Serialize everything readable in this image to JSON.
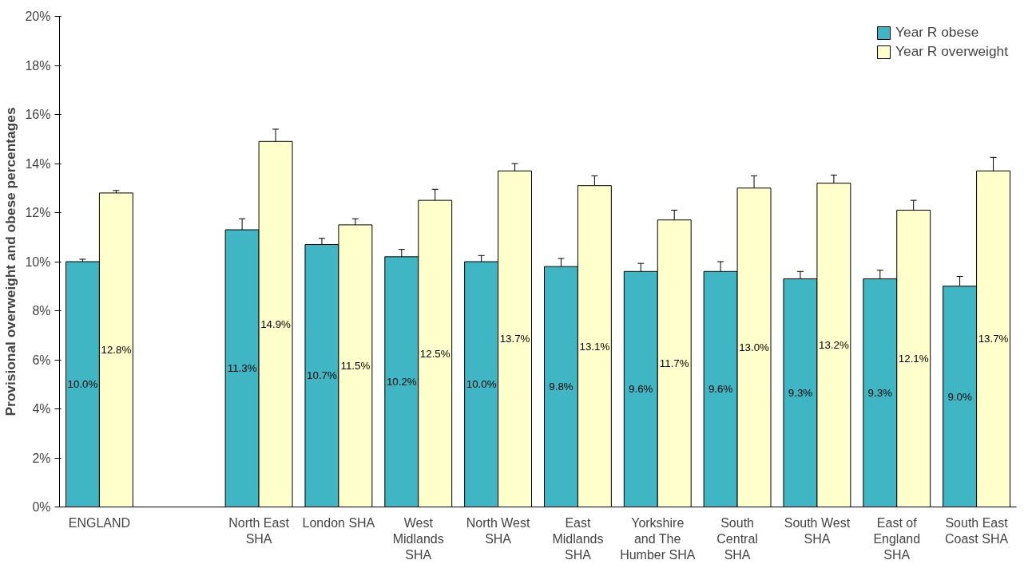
{
  "chart_data": {
    "type": "bar",
    "ylabel": "Provisional overweight and obese percentages",
    "categories": [
      "ENGLAND",
      null,
      "North East SHA",
      "London SHA",
      "West Midlands SHA",
      "North West SHA",
      "East Midlands SHA",
      "Yorkshire and The Humber SHA",
      "South Central SHA",
      "South West SHA",
      "East of England SHA",
      "South East Coast SHA"
    ],
    "series": [
      {
        "name": "Year R obese",
        "color": "#40b6c4",
        "values": [
          10.0,
          null,
          11.3,
          10.7,
          10.2,
          10.0,
          9.8,
          9.6,
          9.6,
          9.3,
          9.3,
          9.0
        ],
        "errors": [
          0.1,
          null,
          0.45,
          0.25,
          0.3,
          0.25,
          0.33,
          0.33,
          0.4,
          0.3,
          0.35,
          0.4
        ],
        "value_labels": [
          "10.0%",
          null,
          "11.3%",
          "10.7%",
          "10.2%",
          "10.0%",
          "9.8%",
          "9.6%",
          "9.6%",
          "9.3%",
          "9.3%",
          "9.0%"
        ]
      },
      {
        "name": "Year R overweight",
        "color": "#ffffcc",
        "values": [
          12.8,
          null,
          14.9,
          11.5,
          12.5,
          13.7,
          13.1,
          11.7,
          13.0,
          13.2,
          12.1,
          13.7
        ],
        "errors": [
          0.1,
          null,
          0.5,
          0.25,
          0.45,
          0.3,
          0.4,
          0.4,
          0.5,
          0.33,
          0.4,
          0.55
        ],
        "value_labels": [
          "12.8%",
          null,
          "14.9%",
          "11.5%",
          "12.5%",
          "13.7%",
          "13.1%",
          "11.7%",
          "13.0%",
          "13.2%",
          "12.1%",
          "13.7%"
        ]
      }
    ],
    "ylim": [
      0,
      20
    ],
    "yticks": [
      {
        "value": 0,
        "label": "0%"
      },
      {
        "value": 2,
        "label": "2%"
      },
      {
        "value": 4,
        "label": "4%"
      },
      {
        "value": 6,
        "label": "6%"
      },
      {
        "value": 8,
        "label": "8%"
      },
      {
        "value": 10,
        "label": "10%"
      },
      {
        "value": 12,
        "label": "12%"
      },
      {
        "value": 14,
        "label": "14%"
      },
      {
        "value": 16,
        "label": "16%"
      },
      {
        "value": 18,
        "label": "18%"
      },
      {
        "value": 20,
        "label": "20%"
      }
    ],
    "grid": false,
    "legend": "top right"
  }
}
